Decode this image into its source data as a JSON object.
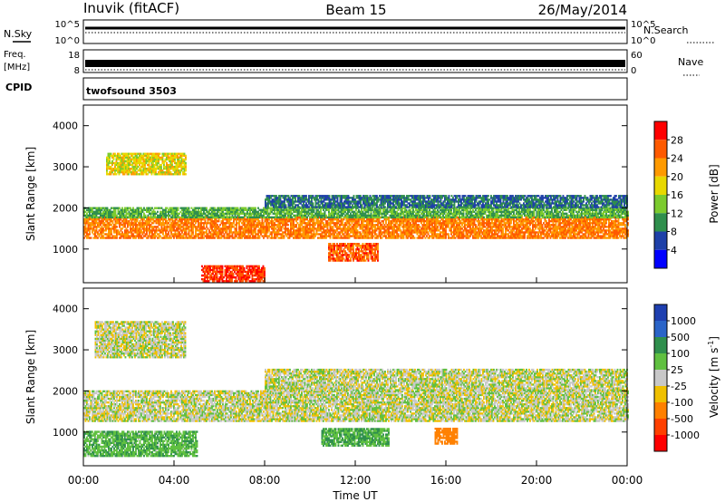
{
  "header": {
    "station": "Inuvik (fitACF)",
    "beam": "Beam 15",
    "date": "26/May/2014"
  },
  "top_panels": {
    "nsky_label": "N.Sky",
    "nsky_ticks": [
      "10^5",
      "10^0"
    ],
    "nsearch_label": "N.Search",
    "nsearch_ticks": [
      "10^5",
      "10^0"
    ],
    "freq_label": "Freq.",
    "freq_unit": "[MHz]",
    "freq_ticks": [
      "18",
      "8"
    ],
    "nave_label": "Nave",
    "nave_ticks": [
      "60",
      "0"
    ],
    "cpid_label": "CPID",
    "cpid_text": "twofsound 3503"
  },
  "chart_data": [
    {
      "type": "heatmap",
      "panel": "power",
      "ylabel": "Slant Range [km]",
      "ylim": [
        180,
        4500
      ],
      "yticks": [
        1000,
        2000,
        3000,
        4000
      ],
      "xlim": [
        0,
        24
      ],
      "colorbar_label": "Power [dB]",
      "colorbar_ticks": [
        "28",
        "24",
        "20",
        "16",
        "12",
        "8",
        "4"
      ],
      "colorbar_colors": [
        "#ff0000",
        "#ff5a00",
        "#ff9a00",
        "#e8d800",
        "#7ccb2e",
        "#2f8f4d",
        "#1e40a8",
        "#0000ff"
      ],
      "bands": [
        {
          "t0": 0.0,
          "t1": 24.0,
          "r0": 1250,
          "r1": 1750,
          "level": 24
        },
        {
          "t0": 0.0,
          "t1": 24.0,
          "r0": 1750,
          "r1": 2000,
          "level": 12
        },
        {
          "t0": 5.2,
          "t1": 8.0,
          "r0": 200,
          "r1": 600,
          "level": 28
        },
        {
          "t0": 10.8,
          "t1": 13.0,
          "r0": 700,
          "r1": 1150,
          "level": 26
        },
        {
          "t0": 1.0,
          "t1": 4.5,
          "r0": 2800,
          "r1": 3300,
          "level": 18
        },
        {
          "t0": 8.0,
          "t1": 24.0,
          "r0": 2000,
          "r1": 2300,
          "level": 8
        }
      ]
    },
    {
      "type": "heatmap",
      "panel": "velocity",
      "ylabel": "Slant Range [km]",
      "xlabel": "Time UT",
      "ylim": [
        180,
        4500
      ],
      "yticks": [
        1000,
        2000,
        3000,
        4000
      ],
      "xlim": [
        0,
        24
      ],
      "xticks": [
        "00:00",
        "04:00",
        "08:00",
        "12:00",
        "16:00",
        "20:00",
        "00:00"
      ],
      "colorbar_label": "Velocity [m s",
      "colorbar_label_sup": "-1",
      "colorbar_label_end": "]",
      "colorbar_ticks": [
        "1000",
        "500",
        "100",
        "25",
        "-25",
        "-100",
        "-500",
        "-1000"
      ],
      "colorbar_colors": [
        "#1e3fb0",
        "#2a64c8",
        "#2f8f4d",
        "#60c040",
        "#c8c8c8",
        "#f0c000",
        "#ff8000",
        "#ff4000",
        "#ff0000"
      ],
      "bands": [
        {
          "t0": 0.0,
          "t1": 24.0,
          "r0": 1250,
          "r1": 2000,
          "level": 0
        },
        {
          "t0": 8.0,
          "t1": 24.0,
          "r0": 2000,
          "r1": 2500,
          "level": 0
        },
        {
          "t0": 10.5,
          "t1": 13.5,
          "r0": 650,
          "r1": 1100,
          "level": 100
        },
        {
          "t0": 0.0,
          "t1": 5.0,
          "r0": 400,
          "r1": 1000,
          "level": 80
        },
        {
          "t0": 0.5,
          "t1": 4.5,
          "r0": 2800,
          "r1": 3700,
          "level": 0
        },
        {
          "t0": 15.5,
          "t1": 16.5,
          "r0": 700,
          "r1": 1100,
          "level": -400
        }
      ]
    }
  ]
}
